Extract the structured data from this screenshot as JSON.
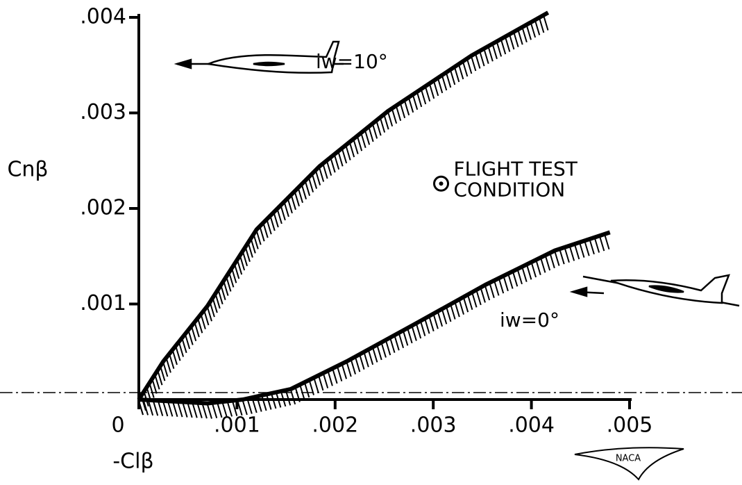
{
  "chart_data": {
    "type": "line",
    "xlabel": "-Clβ",
    "ylabel": "Cnβ",
    "xlim": [
      0,
      0.005
    ],
    "ylim": [
      0,
      0.004
    ],
    "xticks": [
      0,
      {
        "value": 0.001,
        "label": ".001"
      },
      {
        "value": 0.002,
        "label": ".002"
      },
      {
        "value": 0.003,
        "label": ".003"
      },
      {
        "value": 0.004,
        "label": ".004"
      },
      {
        "value": 0.005,
        "label": ".005"
      }
    ],
    "yticks": [
      {
        "value": 0.001,
        "label": ".001"
      },
      {
        "value": 0.002,
        "label": ".002"
      },
      {
        "value": 0.003,
        "label": ".003"
      },
      {
        "value": 0.004,
        "label": ".004"
      }
    ],
    "series": [
      {
        "name": "iw=10°",
        "color": "#000000",
        "x": [
          0,
          0.00025,
          0.0007,
          0.0012,
          0.00184,
          0.00254,
          0.00339,
          0.00417
        ],
        "values": [
          0,
          0.0004,
          0.00098,
          0.00178,
          0.00244,
          0.00302,
          0.0036,
          0.00405
        ]
      },
      {
        "name": "iw=0°",
        "color": "#000000",
        "x": [
          0,
          0.00035,
          0.0007,
          0.00106,
          0.00155,
          0.00212,
          0.00283,
          0.00353,
          0.00424,
          0.0048
        ],
        "values": [
          0,
          -2e-05,
          -4e-05,
          0,
          0.00011,
          0.0004,
          0.0008,
          0.0012,
          0.00156,
          0.00175
        ]
      }
    ],
    "points": [
      {
        "x": 0.00308,
        "y": 0.00226,
        "label": [
          "FLIGHT TEST",
          "CONDITION"
        ]
      }
    ],
    "logo": "NACA"
  }
}
